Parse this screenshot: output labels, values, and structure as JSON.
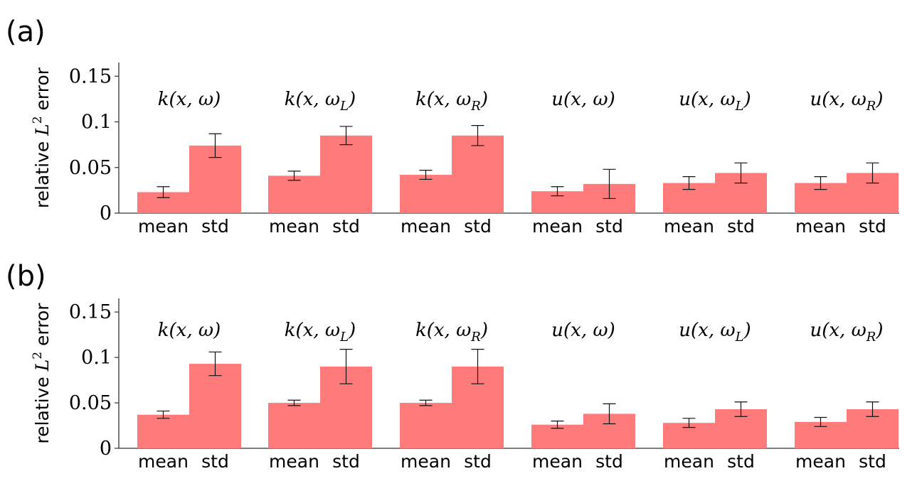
{
  "chart_data": [
    {
      "panel": "(a)",
      "type": "bar",
      "ylabel_prefix": "relative",
      "ylabel_L": "L",
      "ylabel_sup": "2",
      "ylabel_suffix": "error",
      "ylim": [
        0,
        0.165
      ],
      "yticks": [
        0,
        0.05,
        0.1,
        0.15
      ],
      "ytick_labels": [
        "0",
        "0.05",
        "0.1",
        "0.15"
      ],
      "bar_color": "#ff7b7b",
      "groups": [
        {
          "base": "k(x, ω",
          "sub": "",
          "close": ")",
          "categories": [
            "mean",
            "std"
          ],
          "values": [
            0.023,
            0.074
          ],
          "errors": [
            0.006,
            0.013
          ]
        },
        {
          "base": "k(x, ω",
          "sub": "L",
          "close": ")",
          "categories": [
            "mean",
            "std"
          ],
          "values": [
            0.041,
            0.085
          ],
          "errors": [
            0.005,
            0.01
          ]
        },
        {
          "base": "k(x, ω",
          "sub": "R",
          "close": ")",
          "categories": [
            "mean",
            "std"
          ],
          "values": [
            0.042,
            0.085
          ],
          "errors": [
            0.005,
            0.011
          ]
        },
        {
          "base": "u(x, ω",
          "sub": "",
          "close": ")",
          "categories": [
            "mean",
            "std"
          ],
          "values": [
            0.024,
            0.032
          ],
          "errors": [
            0.005,
            0.016
          ]
        },
        {
          "base": "u(x, ω",
          "sub": "L",
          "close": ")",
          "categories": [
            "mean",
            "std"
          ],
          "values": [
            0.033,
            0.044
          ],
          "errors": [
            0.007,
            0.011
          ]
        },
        {
          "base": "u(x, ω",
          "sub": "R",
          "close": ")",
          "categories": [
            "mean",
            "std"
          ],
          "values": [
            0.033,
            0.044
          ],
          "errors": [
            0.007,
            0.011
          ]
        }
      ]
    },
    {
      "panel": "(b)",
      "type": "bar",
      "ylabel_prefix": "relative",
      "ylabel_L": "L",
      "ylabel_sup": "2",
      "ylabel_suffix": "error",
      "ylim": [
        0,
        0.165
      ],
      "yticks": [
        0,
        0.05,
        0.1,
        0.15
      ],
      "ytick_labels": [
        "0",
        "0.05",
        "0.1",
        "0.15"
      ],
      "bar_color": "#ff7b7b",
      "groups": [
        {
          "base": "k(x, ω",
          "sub": "",
          "close": ")",
          "categories": [
            "mean",
            "std"
          ],
          "values": [
            0.037,
            0.093
          ],
          "errors": [
            0.004,
            0.013
          ]
        },
        {
          "base": "k(x, ω",
          "sub": "L",
          "close": ")",
          "categories": [
            "mean",
            "std"
          ],
          "values": [
            0.05,
            0.09
          ],
          "errors": [
            0.003,
            0.019
          ]
        },
        {
          "base": "k(x, ω",
          "sub": "R",
          "close": ")",
          "categories": [
            "mean",
            "std"
          ],
          "values": [
            0.05,
            0.09
          ],
          "errors": [
            0.003,
            0.019
          ]
        },
        {
          "base": "u(x, ω",
          "sub": "",
          "close": ")",
          "categories": [
            "mean",
            "std"
          ],
          "values": [
            0.026,
            0.038
          ],
          "errors": [
            0.004,
            0.011
          ]
        },
        {
          "base": "u(x, ω",
          "sub": "L",
          "close": ")",
          "categories": [
            "mean",
            "std"
          ],
          "values": [
            0.028,
            0.043
          ],
          "errors": [
            0.005,
            0.008
          ]
        },
        {
          "base": "u(x, ω",
          "sub": "R",
          "close": ")",
          "categories": [
            "mean",
            "std"
          ],
          "values": [
            0.029,
            0.043
          ],
          "errors": [
            0.005,
            0.008
          ]
        }
      ]
    }
  ]
}
